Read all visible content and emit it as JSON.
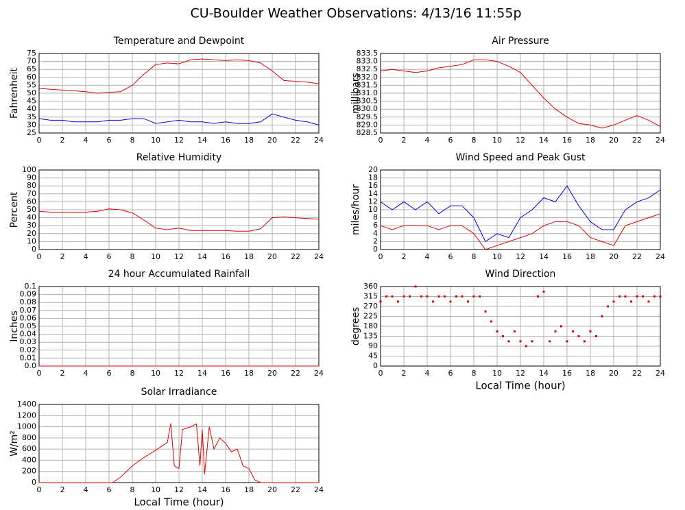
{
  "title": "CU-Boulder Weather Observations: 4/13/16 11:55p",
  "chart_data": [
    {
      "type": "line",
      "title": "Temperature and Dewpoint",
      "ylabel": "Fahrenheit",
      "x": [
        0,
        1,
        2,
        3,
        4,
        5,
        6,
        7,
        8,
        9,
        10,
        11,
        12,
        13,
        14,
        15,
        16,
        17,
        18,
        19,
        20,
        21,
        22,
        23,
        24
      ],
      "series": [
        {
          "color": "#e00000",
          "values": [
            53,
            52.5,
            52,
            51.5,
            51,
            50,
            50.5,
            51,
            55,
            62,
            68,
            69,
            68.5,
            71,
            71.5,
            71,
            70.5,
            71,
            70.5,
            69,
            64,
            58,
            57.5,
            57,
            56
          ]
        },
        {
          "color": "#0000e0",
          "values": [
            34,
            33,
            33,
            32,
            32,
            32,
            33,
            33,
            34,
            34,
            31,
            32,
            33,
            32,
            32,
            31,
            32,
            31,
            31,
            32,
            37,
            35,
            33,
            32,
            30
          ]
        }
      ],
      "xlim": [
        0,
        24
      ],
      "xticks": [
        0,
        2,
        4,
        6,
        8,
        10,
        12,
        14,
        16,
        18,
        20,
        22,
        24
      ],
      "ylim": [
        25,
        75
      ],
      "yticks": [
        25,
        30,
        35,
        40,
        45,
        50,
        55,
        60,
        65,
        70,
        75
      ],
      "grid": true
    },
    {
      "type": "line",
      "title": "Air Pressure",
      "ylabel": "millibars",
      "x": [
        0,
        1,
        2,
        3,
        4,
        5,
        6,
        7,
        8,
        9,
        10,
        11,
        12,
        13,
        14,
        15,
        16,
        17,
        18,
        19,
        20,
        21,
        22,
        23,
        24
      ],
      "series": [
        {
          "color": "#e00000",
          "values": [
            832.4,
            832.5,
            832.4,
            832.3,
            832.4,
            832.6,
            832.7,
            832.8,
            833.1,
            833.1,
            833.0,
            832.7,
            832.3,
            831.5,
            830.7,
            830.0,
            829.5,
            829.1,
            829.0,
            828.8,
            829.0,
            829.3,
            829.6,
            829.3,
            828.9
          ]
        }
      ],
      "xlim": [
        0,
        24
      ],
      "xticks": [
        0,
        2,
        4,
        6,
        8,
        10,
        12,
        14,
        16,
        18,
        20,
        22,
        24
      ],
      "ylim": [
        828.5,
        833.5
      ],
      "yticks": [
        828.5,
        {
          "value": 829,
          "label": "829.0"
        },
        829.5,
        {
          "value": 830,
          "label": "830.0"
        },
        830.5,
        {
          "value": 831,
          "label": "831.0"
        },
        831.5,
        {
          "value": 832,
          "label": "832.0"
        },
        832.5,
        {
          "value": 833,
          "label": "833.0"
        },
        833.5
      ],
      "grid": true
    },
    {
      "type": "line",
      "title": "Relative Humidity",
      "ylabel": "Percent",
      "x": [
        0,
        1,
        2,
        3,
        4,
        5,
        6,
        7,
        8,
        9,
        10,
        11,
        12,
        13,
        14,
        15,
        16,
        17,
        18,
        19,
        20,
        21,
        22,
        23,
        24
      ],
      "series": [
        {
          "color": "#e00000",
          "values": [
            48,
            47,
            47,
            47,
            47,
            48,
            51,
            50,
            46,
            37,
            27,
            25,
            27,
            24,
            24,
            24,
            24,
            23,
            23,
            26,
            40,
            41,
            40,
            39,
            38
          ]
        }
      ],
      "xlim": [
        0,
        24
      ],
      "xticks": [
        0,
        2,
        4,
        6,
        8,
        10,
        12,
        14,
        16,
        18,
        20,
        22,
        24
      ],
      "ylim": [
        0,
        100
      ],
      "yticks": [
        0,
        10,
        20,
        30,
        40,
        50,
        60,
        70,
        80,
        90,
        100
      ],
      "grid": true
    },
    {
      "type": "line",
      "title": "Wind Speed and Peak Gust",
      "ylabel": "miles/hour",
      "x": [
        0,
        1,
        2,
        3,
        4,
        5,
        6,
        7,
        8,
        9,
        10,
        11,
        12,
        13,
        14,
        15,
        16,
        17,
        18,
        19,
        20,
        21,
        22,
        23,
        24
      ],
      "series": [
        {
          "color": "#0000e0",
          "values": [
            12,
            10,
            12,
            10,
            12,
            9,
            11,
            11,
            8,
            2,
            4,
            3,
            8,
            10,
            13,
            12,
            16,
            11,
            7,
            5,
            5,
            10,
            12,
            13,
            15
          ]
        },
        {
          "color": "#e00000",
          "values": [
            6,
            5,
            6,
            6,
            6,
            5,
            6,
            6,
            4,
            0,
            1,
            2,
            3,
            4,
            6,
            7,
            7,
            6,
            3,
            2,
            1,
            6,
            7,
            8,
            9
          ]
        }
      ],
      "xlim": [
        0,
        24
      ],
      "xticks": [
        0,
        2,
        4,
        6,
        8,
        10,
        12,
        14,
        16,
        18,
        20,
        22,
        24
      ],
      "ylim": [
        0,
        20
      ],
      "yticks": [
        0,
        2,
        4,
        6,
        8,
        10,
        12,
        14,
        16,
        18,
        20
      ],
      "grid": true
    },
    {
      "type": "line",
      "title": "24 hour Accumulated Rainfall",
      "ylabel": "Inches",
      "x": [
        0,
        24
      ],
      "series": [
        {
          "color": "#e00000",
          "values": [
            0,
            0
          ]
        }
      ],
      "xlim": [
        0,
        24
      ],
      "xticks": [
        0,
        2,
        4,
        6,
        8,
        10,
        12,
        14,
        16,
        18,
        20,
        22,
        24
      ],
      "ylim": [
        0,
        0.1
      ],
      "yticks": [
        {
          "value": 0,
          "label": "0.0"
        },
        0.01,
        0.02,
        0.03,
        0.04,
        0.05,
        0.06,
        0.07,
        0.08,
        0.09,
        0.1
      ],
      "grid": true
    },
    {
      "type": "scatter",
      "title": "Wind Direction",
      "ylabel": "degrees",
      "xlabel": "Local Time (hour)",
      "x": [
        0,
        0.5,
        1,
        1.5,
        2,
        2.5,
        3,
        3.5,
        4,
        4.5,
        5,
        5.5,
        6,
        6.5,
        7,
        7.5,
        8,
        8.5,
        9,
        9.5,
        10,
        10.5,
        11,
        11.5,
        12,
        12.5,
        13,
        13.5,
        14,
        14.5,
        15,
        15.5,
        16,
        16.5,
        17,
        17.5,
        18,
        18.5,
        19,
        19.5,
        20,
        20.5,
        21,
        21.5,
        22,
        22.5,
        23,
        23.5,
        24
      ],
      "series": [
        {
          "color": "#e00000",
          "values": [
            292,
            315,
            315,
            292,
            315,
            315,
            360,
            315,
            315,
            292,
            315,
            315,
            292,
            315,
            315,
            292,
            315,
            315,
            247,
            202,
            157,
            135,
            112,
            157,
            112,
            90,
            112,
            315,
            337,
            112,
            157,
            180,
            112,
            157,
            135,
            112,
            157,
            135,
            225,
            270,
            292,
            315,
            315,
            292,
            315,
            315,
            292,
            315,
            315
          ]
        }
      ],
      "xlim": [
        0,
        24
      ],
      "xticks": [
        0,
        2,
        4,
        6,
        8,
        10,
        12,
        14,
        16,
        18,
        20,
        22,
        24
      ],
      "ylim": [
        0,
        360
      ],
      "yticks": [
        0,
        45,
        90,
        135,
        180,
        225,
        270,
        315,
        360
      ],
      "grid": true
    },
    {
      "type": "line",
      "title": "Solar Irradiance",
      "ylabel": "W/m²",
      "xlabel": "Local Time (hour)",
      "x": [
        0,
        6.3,
        7,
        8,
        9,
        10,
        11,
        11.3,
        11.6,
        12,
        12.3,
        13,
        13.5,
        13.8,
        14,
        14.2,
        14.6,
        15,
        15.5,
        16,
        16.5,
        17,
        17.5,
        18,
        18.5,
        19,
        24
      ],
      "series": [
        {
          "color": "#e00000",
          "values": [
            0,
            0,
            100,
            300,
            450,
            580,
            720,
            1060,
            300,
            250,
            950,
            1000,
            1050,
            300,
            950,
            150,
            1000,
            600,
            800,
            700,
            550,
            600,
            300,
            250,
            50,
            0,
            0
          ]
        }
      ],
      "xlim": [
        0,
        24
      ],
      "xticks": [
        0,
        2,
        4,
        6,
        8,
        10,
        12,
        14,
        16,
        18,
        20,
        22,
        24
      ],
      "ylim": [
        0,
        1400
      ],
      "yticks": [
        0,
        200,
        400,
        600,
        800,
        1000,
        1200,
        1400
      ],
      "grid": true
    }
  ]
}
